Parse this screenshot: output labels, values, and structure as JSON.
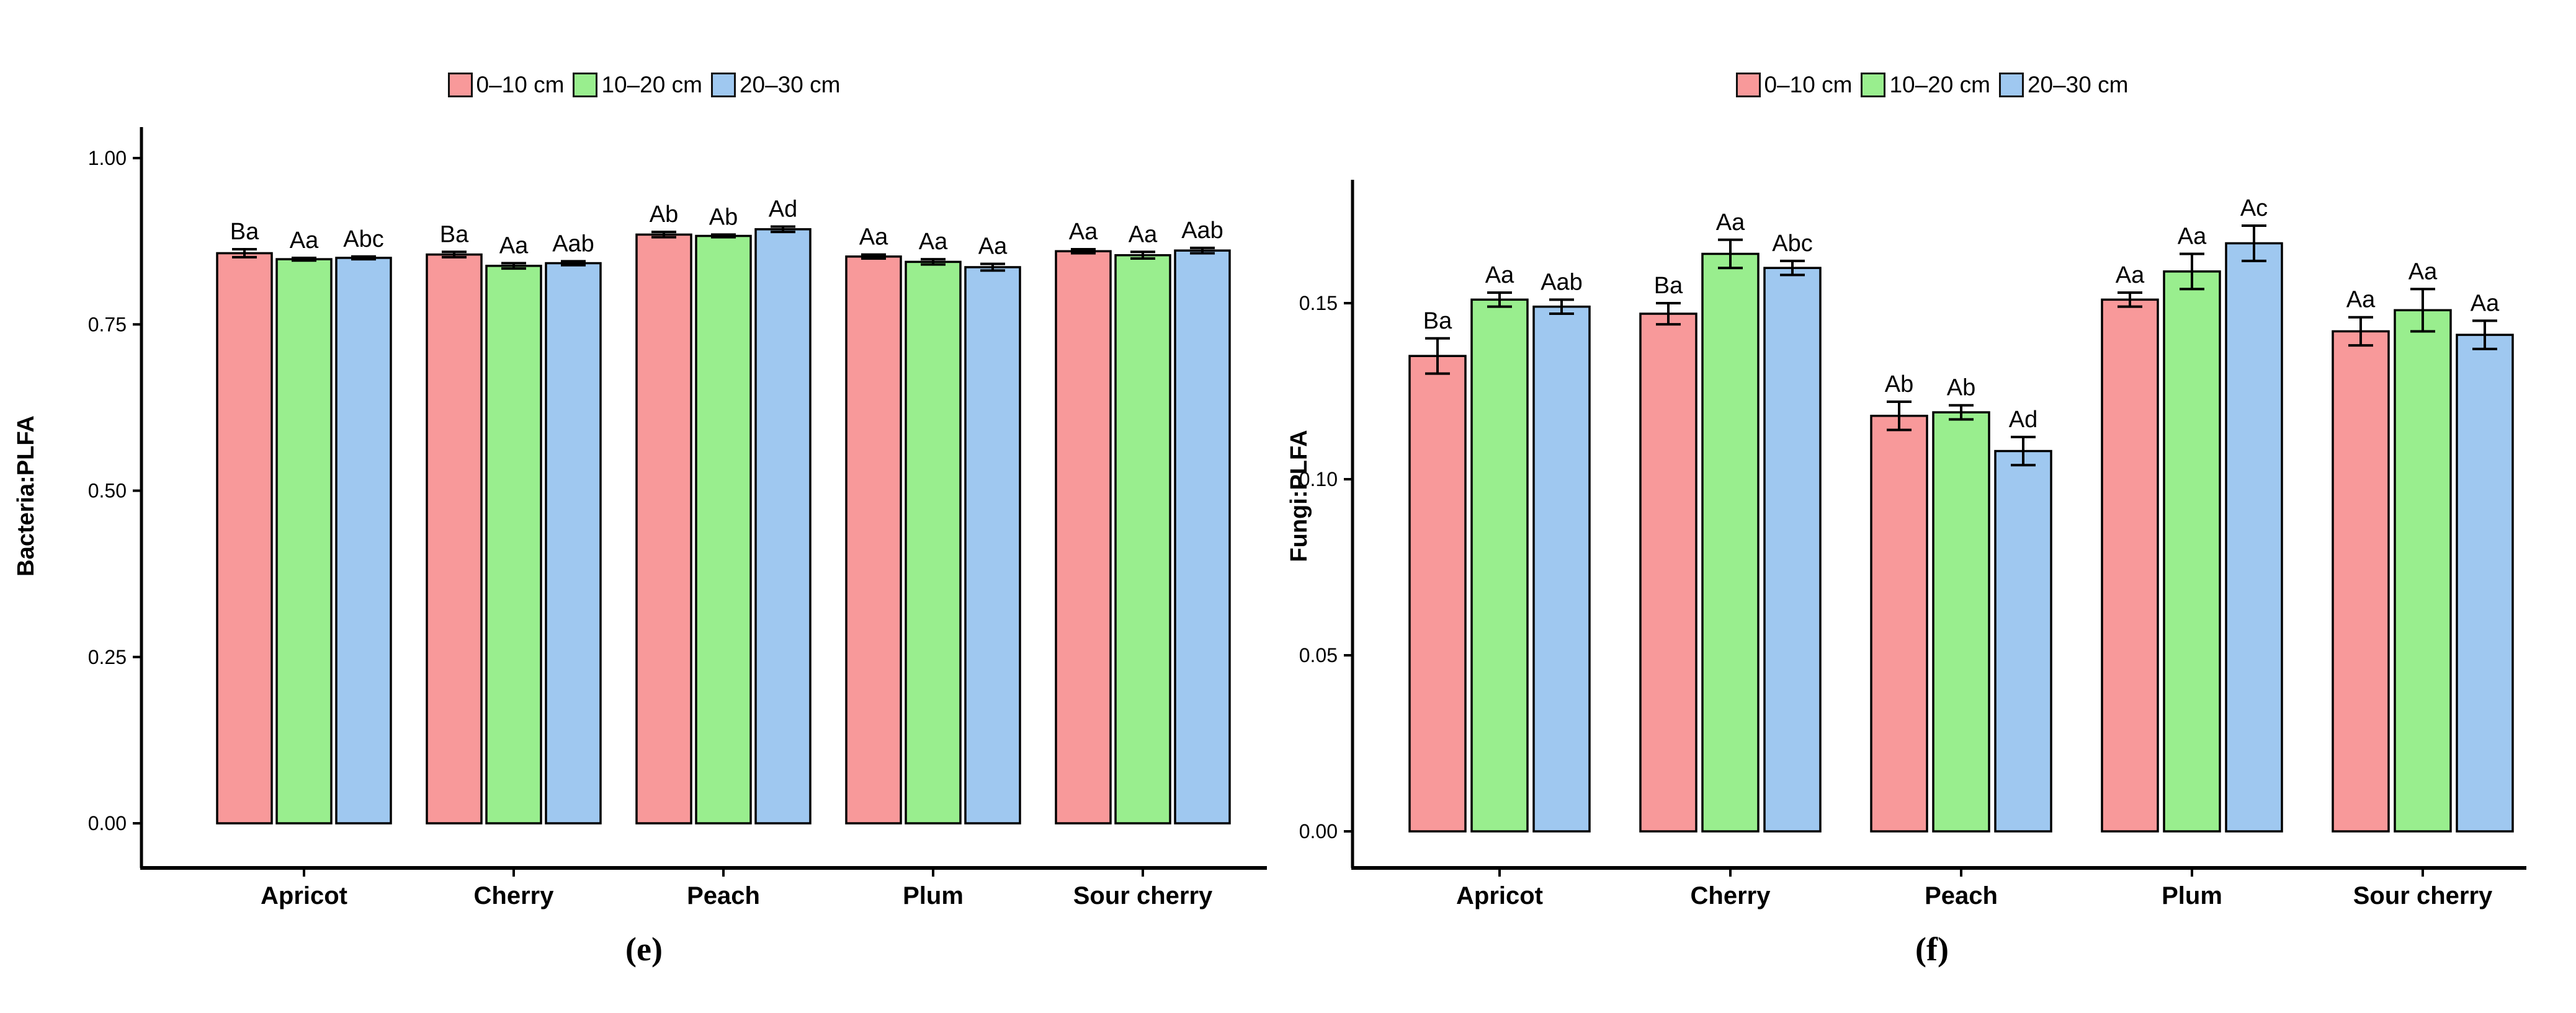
{
  "figure": {
    "background_color": "#ffffff",
    "axis_color": "#000000",
    "legend": {
      "items": [
        {
          "label": "0–10 cm",
          "color": "#F8999A"
        },
        {
          "label": "10–20 cm",
          "color": "#99EE8E"
        },
        {
          "label": "20–30 cm",
          "color": "#9FC8F0"
        }
      ]
    }
  },
  "chart_data": [
    {
      "type": "bar",
      "panel_letter": "(e)",
      "title": "",
      "xlabel": "",
      "ylabel": "Bacteria:PLFA",
      "ylim": [
        0,
        1.05
      ],
      "grid": false,
      "legend_position": "top-center",
      "yticks": [
        {
          "value": 0.0,
          "label": "0.00"
        },
        {
          "value": 0.25,
          "label": "0.25"
        },
        {
          "value": 0.5,
          "label": "0.50"
        },
        {
          "value": 0.75,
          "label": "0.75"
        },
        {
          "value": 1.0,
          "label": "1.00"
        }
      ],
      "categories": [
        "Apricot",
        "Cherry",
        "Peach",
        "Plum",
        "Sour cherry"
      ],
      "series": [
        {
          "name": "0–10 cm",
          "color": "#F8999A",
          "values": [
            0.857,
            0.855,
            0.885,
            0.852,
            0.86
          ],
          "errors": [
            0.006,
            0.004,
            0.004,
            0.003,
            0.003
          ],
          "sig_labels": [
            "Ba",
            "Ba",
            "Ab",
            "Aa",
            "Aa"
          ]
        },
        {
          "name": "10–20 cm",
          "color": "#99EE8E",
          "values": [
            0.848,
            0.838,
            0.883,
            0.844,
            0.854
          ],
          "errors": [
            0.002,
            0.004,
            0.002,
            0.004,
            0.005
          ],
          "sig_labels": [
            "Aa",
            "Aa",
            "Ab",
            "Aa",
            "Aa"
          ]
        },
        {
          "name": "20–30 cm",
          "color": "#9FC8F0",
          "values": [
            0.85,
            0.842,
            0.893,
            0.836,
            0.861
          ],
          "errors": [
            0.002,
            0.003,
            0.004,
            0.005,
            0.004
          ],
          "sig_labels": [
            "Abc",
            "Aab",
            "Ad",
            "Aa",
            "Aab"
          ]
        }
      ]
    },
    {
      "type": "bar",
      "panel_letter": "(f)",
      "title": "",
      "xlabel": "",
      "ylabel": "Fungi:PLFA",
      "ylim": [
        0,
        0.185
      ],
      "grid": false,
      "legend_position": "top-center",
      "yticks": [
        {
          "value": 0.0,
          "label": "0.00"
        },
        {
          "value": 0.05,
          "label": "0.05"
        },
        {
          "value": 0.1,
          "label": "0.10"
        },
        {
          "value": 0.15,
          "label": "0.15"
        }
      ],
      "categories": [
        "Apricot",
        "Cherry",
        "Peach",
        "Plum",
        "Sour cherry"
      ],
      "series": [
        {
          "name": "0–10 cm",
          "color": "#F8999A",
          "values": [
            0.135,
            0.147,
            0.118,
            0.151,
            0.142
          ],
          "errors": [
            0.005,
            0.003,
            0.004,
            0.002,
            0.004
          ],
          "sig_labels": [
            "Ba",
            "Ba",
            "Ab",
            "Aa",
            "Aa"
          ]
        },
        {
          "name": "10–20 cm",
          "color": "#99EE8E",
          "values": [
            0.151,
            0.164,
            0.119,
            0.159,
            0.148
          ],
          "errors": [
            0.002,
            0.004,
            0.002,
            0.005,
            0.006
          ],
          "sig_labels": [
            "Aa",
            "Aa",
            "Ab",
            "Aa",
            "Aa"
          ]
        },
        {
          "name": "20–30 cm",
          "color": "#9FC8F0",
          "values": [
            0.149,
            0.16,
            0.108,
            0.167,
            0.141
          ],
          "errors": [
            0.002,
            0.002,
            0.004,
            0.005,
            0.004
          ],
          "sig_labels": [
            "Aab",
            "Abc",
            "Ad",
            "Ac",
            "Aa"
          ]
        }
      ]
    }
  ]
}
